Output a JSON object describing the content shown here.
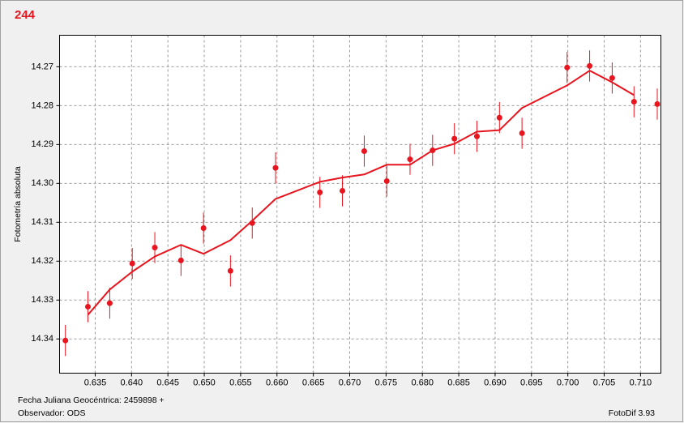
{
  "chart_data": {
    "type": "scatter",
    "title": "244",
    "ylabel": "Fotometría absoluta",
    "xlabel": "Fecha Juliana Geocéntrica: 2459898 +",
    "observer": "Observador: ODS",
    "software": "FotoDif 3.93",
    "x": [
      0.6309,
      0.634,
      0.637,
      0.6401,
      0.6432,
      0.6468,
      0.6499,
      0.6536,
      0.6566,
      0.6598,
      0.6659,
      0.669,
      0.672,
      0.6751,
      0.6783,
      0.6814,
      0.6844,
      0.6875,
      0.6906,
      0.6937,
      0.6999,
      0.703,
      0.7061,
      0.7091,
      0.7123
    ],
    "series": [
      {
        "type": "scatter",
        "color": "#e8141e",
        "values": [
          14.3404,
          14.3317,
          14.3308,
          14.3206,
          14.3165,
          14.3198,
          14.3115,
          14.3225,
          14.3102,
          14.296,
          14.3023,
          14.3019,
          14.2917,
          14.2994,
          14.2938,
          14.2915,
          14.2885,
          14.2879,
          14.2831,
          14.2871,
          14.2702,
          14.2698,
          14.2729,
          14.279,
          14.2796
        ],
        "errors": [
          0.004,
          0.004,
          0.004,
          0.004,
          0.004,
          0.004,
          0.004,
          0.004,
          0.004,
          0.004,
          0.004,
          0.004,
          0.004,
          0.004,
          0.004,
          0.004,
          0.004,
          0.004,
          0.004,
          0.004,
          0.004,
          0.004,
          0.004,
          0.004,
          0.004
        ]
      },
      {
        "type": "line",
        "color": "#e8141e",
        "values": [
          null,
          14.3338,
          14.3273,
          14.3227,
          14.3188,
          14.3158,
          14.3181,
          14.3146,
          14.3096,
          14.304,
          14.2996,
          14.2985,
          14.2977,
          14.2952,
          14.2952,
          14.2915,
          14.2898,
          14.2867,
          14.2863,
          14.2806,
          14.2748,
          14.271,
          14.274,
          14.2773,
          null
        ]
      }
    ],
    "xlim": [
      0.6301,
      0.7128
    ],
    "ylim": [
      14.3488,
      14.2619
    ],
    "xticks": [
      0.635,
      {
        "value": 0.64,
        "label": "0.640"
      },
      0.645,
      {
        "value": 0.65,
        "label": "0.650"
      },
      0.655,
      {
        "value": 0.66,
        "label": "0.660"
      },
      0.665,
      {
        "value": 0.67,
        "label": "0.670"
      },
      0.675,
      {
        "value": 0.68,
        "label": "0.680"
      },
      0.685,
      {
        "value": 0.69,
        "label": "0.690"
      },
      0.695,
      {
        "value": 0.7,
        "label": "0.700"
      },
      0.705,
      {
        "value": 0.71,
        "label": "0.710"
      }
    ],
    "yticks": [
      14.27,
      14.28,
      14.29,
      {
        "value": 14.3,
        "label": "14.30"
      },
      14.31,
      14.32,
      14.33,
      14.34
    ],
    "grid": true
  }
}
